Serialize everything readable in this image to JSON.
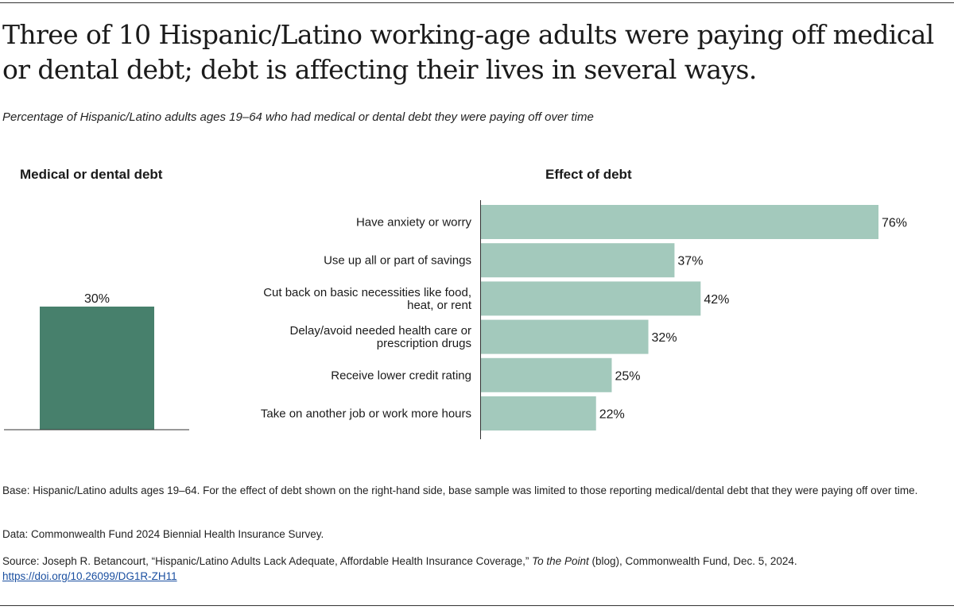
{
  "title": "Three of 10 Hispanic/Latino working-age adults were paying off medical or dental debt; debt is affecting their lives in several ways.",
  "subtitle": "Percentage of Hispanic/Latino adults ages 19–64 who had medical or dental debt they were paying off over time",
  "colors": {
    "left_bar": "#47806c",
    "right_bar": "#a3c9bc",
    "axis": "#333333"
  },
  "chart_data": [
    {
      "type": "bar",
      "title": "Medical or dental debt",
      "categories": [
        ""
      ],
      "values": [
        30
      ],
      "value_labels": [
        "30%"
      ],
      "ylim": [
        0,
        30
      ],
      "grid": false
    },
    {
      "type": "bar",
      "orientation": "horizontal",
      "title": "Effect of debt",
      "categories": [
        [
          "Have anxiety or worry"
        ],
        [
          "Use up all or part of savings"
        ],
        [
          "Cut back on basic necessities like food,",
          "heat, or rent"
        ],
        [
          "Delay/avoid needed health care or",
          "prescription drugs"
        ],
        [
          "Receive lower credit rating"
        ],
        [
          "Take on another job or work more hours"
        ]
      ],
      "values": [
        76,
        37,
        42,
        32,
        25,
        22
      ],
      "value_labels": [
        "76%",
        "37%",
        "42%",
        "32%",
        "25%",
        "22%"
      ],
      "xlim": [
        0,
        76
      ],
      "grid": false
    }
  ],
  "footnotes": {
    "base": "Base: Hispanic/Latino adults ages 19–64. For the effect of debt shown on the right-hand side, base sample was limited to those reporting medical/dental debt that they were paying off over time.",
    "data": "Data: Commonwealth Fund 2024 Biennial Health Insurance Survey.",
    "source_pre": "Source: Joseph R. Betancourt, “Hispanic/Latino Adults Lack Adequate, Affordable Health Insurance Coverage,” ",
    "source_italic": "To the Point",
    "source_post": " (blog), Commonwealth Fund, Dec. 5, 2024.",
    "link": "https://doi.org/10.26099/DG1R-ZH11"
  }
}
